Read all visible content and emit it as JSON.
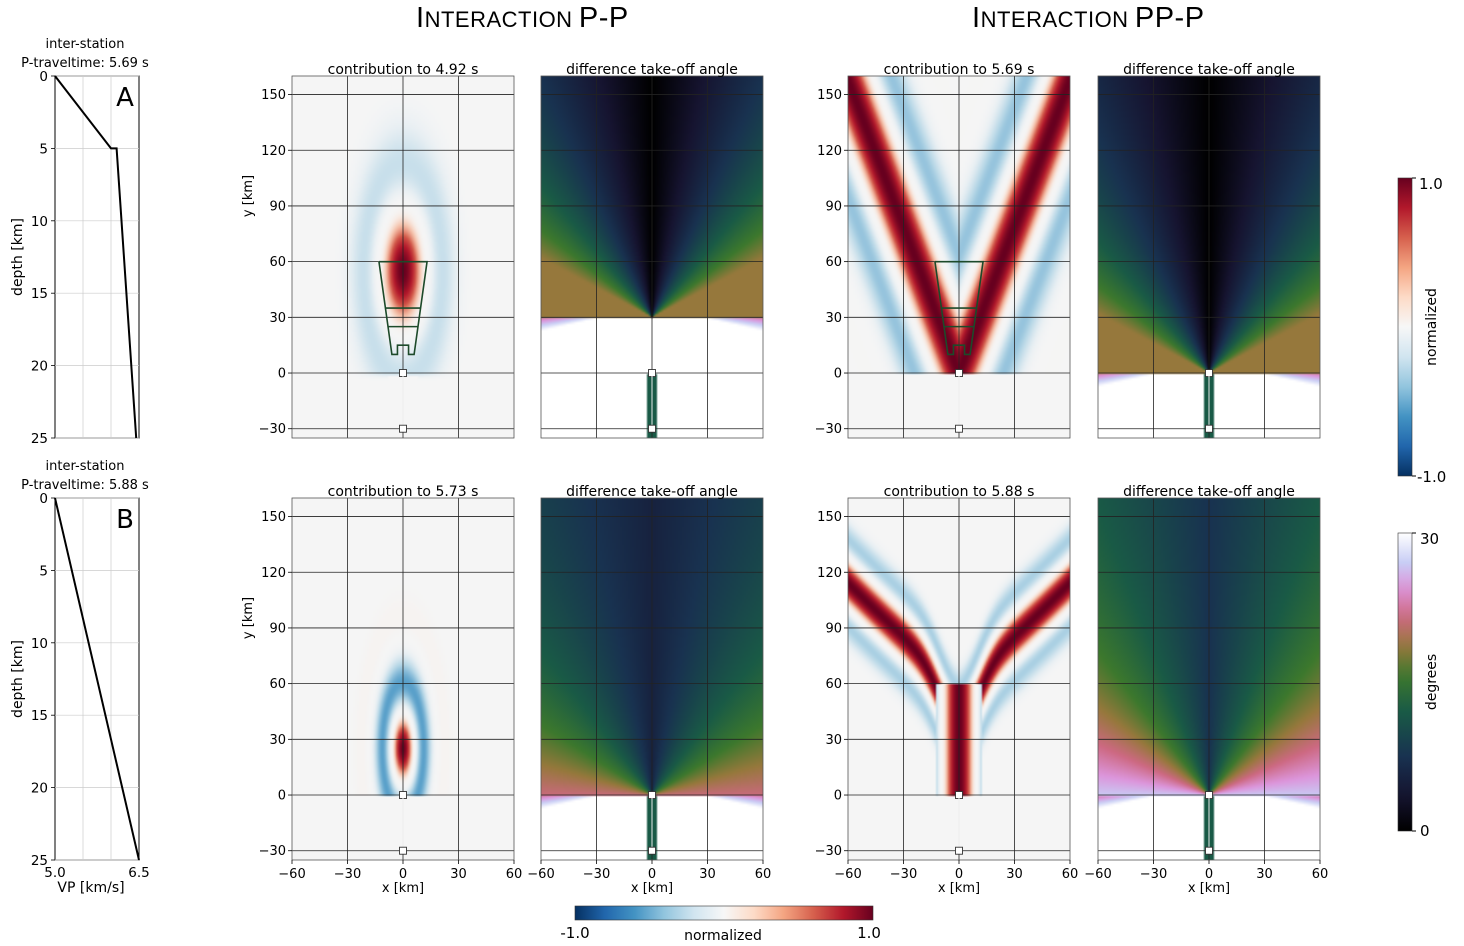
{
  "sections": [
    {
      "title_first": "I",
      "title_rest": "NTERACTION",
      "title_suffix": "P-P"
    },
    {
      "title_first": "I",
      "title_rest": "NTERACTION",
      "title_suffix": "PP-P"
    }
  ],
  "chart_data": [
    {
      "type": "line",
      "panel_label": "A",
      "title": "inter-station\nP-traveltime: 5.69 s",
      "xlabel": "",
      "ylabel": "depth [km]",
      "xlim": [
        5.0,
        6.5
      ],
      "ylim": [
        25,
        0
      ],
      "y_ticks": [
        0,
        5,
        10,
        15,
        20,
        25
      ],
      "grid": true,
      "series": [
        {
          "x": [
            5.0,
            6.0,
            6.1,
            6.45
          ],
          "y": [
            0,
            5,
            5,
            25
          ]
        }
      ]
    },
    {
      "type": "line",
      "panel_label": "B",
      "title": "inter-station\nP-traveltime: 5.88 s",
      "xlabel": "VP [km/s]",
      "ylabel": "depth [km]",
      "xlim": [
        5.0,
        6.5
      ],
      "ylim": [
        25,
        0
      ],
      "x_ticks": [
        "5.0",
        "6.5"
      ],
      "y_ticks": [
        0,
        5,
        10,
        15,
        20,
        25
      ],
      "grid": true,
      "series": [
        {
          "x": [
            5.0,
            6.5
          ],
          "y": [
            0,
            25
          ]
        }
      ]
    },
    {
      "type": "heatmap",
      "title": "contribution to 4.92 s",
      "kind": "contribution",
      "variant": "pp_top",
      "ylabel": "y [km]",
      "xlabel": "",
      "xlim": [
        -60,
        60
      ],
      "ylim": [
        -35,
        160
      ],
      "stations": [
        [
          0,
          0
        ],
        [
          0,
          -30
        ]
      ]
    },
    {
      "type": "heatmap",
      "title": "difference take-off angle",
      "kind": "angle",
      "variant": "pp_top",
      "xlabel": "",
      "xlim": [
        -60,
        60
      ],
      "ylim": [
        -35,
        160
      ],
      "stations": [
        [
          0,
          0
        ],
        [
          0,
          -30
        ]
      ]
    },
    {
      "type": "heatmap",
      "title": "contribution to 5.69 s",
      "kind": "contribution",
      "variant": "ppp_top",
      "xlabel": "",
      "xlim": [
        -60,
        60
      ],
      "ylim": [
        -35,
        160
      ],
      "stations": [
        [
          0,
          0
        ],
        [
          0,
          -30
        ]
      ]
    },
    {
      "type": "heatmap",
      "title": "difference take-off angle",
      "kind": "angle",
      "variant": "ppp_top",
      "xlabel": "",
      "xlim": [
        -60,
        60
      ],
      "ylim": [
        -35,
        160
      ],
      "stations": [
        [
          0,
          0
        ],
        [
          0,
          -30
        ]
      ]
    },
    {
      "type": "heatmap",
      "title": "contribution to 5.73 s",
      "kind": "contribution",
      "variant": "pp_bot",
      "ylabel": "y [km]",
      "xlabel": "x [km]",
      "xlim": [
        -60,
        60
      ],
      "ylim": [
        -35,
        160
      ],
      "stations": [
        [
          0,
          0
        ],
        [
          0,
          -30
        ]
      ]
    },
    {
      "type": "heatmap",
      "title": "difference take-off angle",
      "kind": "angle",
      "variant": "pp_bot",
      "xlabel": "x [km]",
      "xlim": [
        -60,
        60
      ],
      "ylim": [
        -35,
        160
      ],
      "stations": [
        [
          0,
          0
        ],
        [
          0,
          -30
        ]
      ]
    },
    {
      "type": "heatmap",
      "title": "contribution to 5.88 s",
      "kind": "contribution",
      "variant": "ppp_bot",
      "xlabel": "x [km]",
      "xlim": [
        -60,
        60
      ],
      "ylim": [
        -35,
        160
      ],
      "stations": [
        [
          0,
          0
        ],
        [
          0,
          -30
        ]
      ]
    },
    {
      "type": "heatmap",
      "title": "difference take-off angle",
      "kind": "angle",
      "variant": "ppp_bot",
      "xlabel": "x [km]",
      "xlim": [
        -60,
        60
      ],
      "ylim": [
        -35,
        160
      ],
      "stations": [
        [
          0,
          0
        ],
        [
          0,
          -30
        ]
      ]
    }
  ],
  "heatmap_x_ticks": [
    "−60",
    "−30",
    "0",
    "30",
    "60"
  ],
  "heatmap_y_ticks": [
    "−30",
    "0",
    "30",
    "60",
    "90",
    "120",
    "150"
  ],
  "colorbars": {
    "normalized_right": {
      "label": "normalized",
      "max": "1.0",
      "min": "-1.0"
    },
    "degrees": {
      "label": "degrees",
      "max": "30",
      "min": "0"
    },
    "normalized_bottom": {
      "label": "normalized",
      "min": "-1.0",
      "max": "1.0"
    }
  },
  "colors": {
    "field_red": "#67001f",
    "field_blue": "#053061",
    "background": "#f5f5f5"
  }
}
